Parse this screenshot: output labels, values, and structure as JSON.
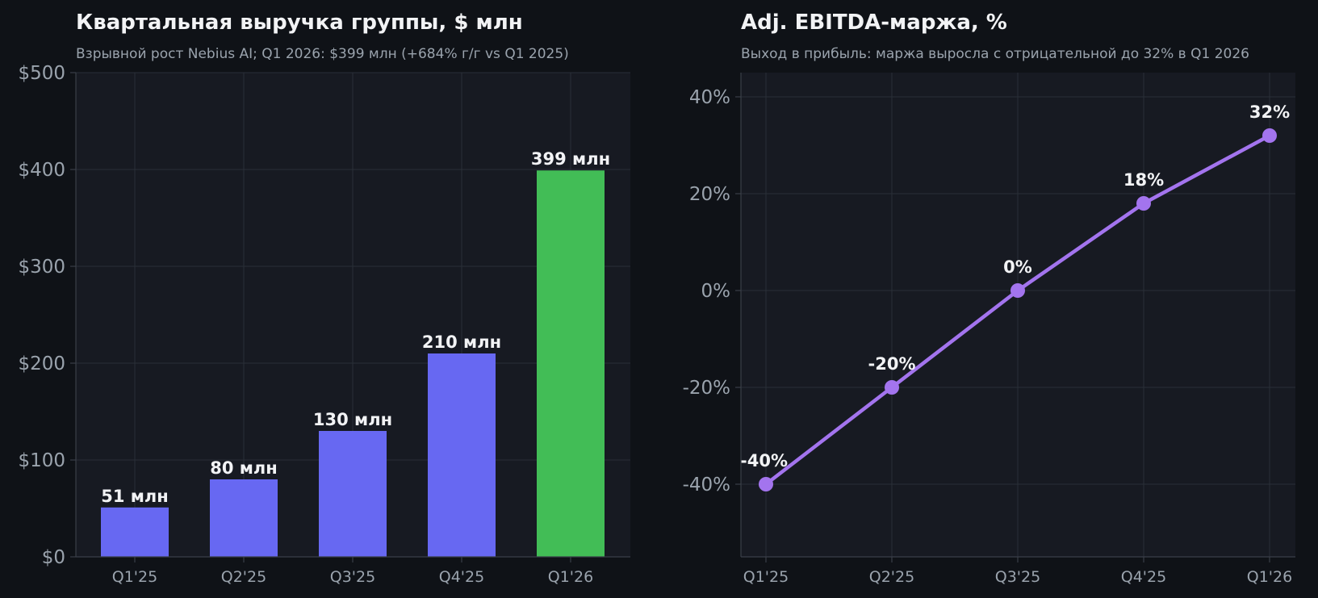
{
  "chart_data": [
    {
      "type": "bar",
      "title": "Квартальная выручка группы, $ млн",
      "subtitle": "Взрывной рост Nebius AI; Q1 2026: $399 млн (+684% г/г vs Q1 2025)",
      "categories": [
        "Q1'25",
        "Q2'25",
        "Q3'25",
        "Q4'25",
        "Q1'26"
      ],
      "values": [
        51,
        80,
        130,
        210,
        399
      ],
      "data_labels": [
        "51 млн",
        "80 млн",
        "130 млн",
        "210 млн",
        "399 млн"
      ],
      "bar_colors": [
        "#6768f2",
        "#6768f2",
        "#6768f2",
        "#6768f2",
        "#42bd56"
      ],
      "ylim": [
        0,
        500
      ],
      "yticks": [
        0,
        100,
        200,
        300,
        400,
        500
      ],
      "ytick_labels": [
        "$0",
        "$100",
        "$200",
        "$300",
        "$400",
        "$500"
      ],
      "xlabel": "",
      "ylabel": "",
      "grid": true,
      "legend": "none"
    },
    {
      "type": "line",
      "title": "Adj. EBITDA-маржа, %",
      "subtitle": "Выход в прибыль: маржа выросла с отрицательной до 32% в Q1 2026",
      "categories": [
        "Q1'25",
        "Q2'25",
        "Q3'25",
        "Q4'25",
        "Q1'26"
      ],
      "values": [
        -40,
        -20,
        0,
        18,
        32
      ],
      "data_labels": [
        "-40%",
        "-20%",
        "0%",
        "18%",
        "32%"
      ],
      "line_color": "#a374ee",
      "ylim": [
        -55,
        45
      ],
      "yticks": [
        -40,
        -20,
        0,
        20,
        40
      ],
      "ytick_labels": [
        "-40%",
        "-20%",
        "0%",
        "20%",
        "40%"
      ],
      "xlabel": "",
      "ylabel": "",
      "grid": true,
      "legend": "none"
    }
  ]
}
